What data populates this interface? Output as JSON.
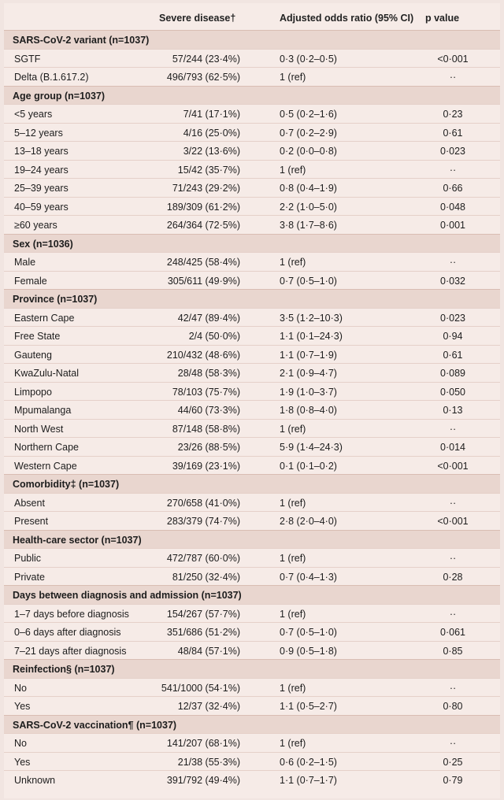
{
  "columns": {
    "severe": "Severe disease†",
    "or": "Adjusted odds ratio (95% CI)",
    "p": "p value"
  },
  "sections": [
    {
      "title": "SARS-CoV-2 variant (n=1037)",
      "rows": [
        {
          "label": "SGTF",
          "severe": "57/244 (23·4%)",
          "or": "0·3 (0·2–0·5)",
          "p": "<0·001"
        },
        {
          "label": "Delta (B.1.617.2)",
          "severe": "496/793 (62·5%)",
          "or": "1 (ref)",
          "p": "··"
        }
      ]
    },
    {
      "title": "Age group (n=1037)",
      "rows": [
        {
          "label": "<5 years",
          "severe": "7/41 (17·1%)",
          "or": "0·5 (0·2–1·6)",
          "p": "0·23"
        },
        {
          "label": "5–12 years",
          "severe": "4/16 (25·0%)",
          "or": "0·7 (0·2–2·9)",
          "p": "0·61"
        },
        {
          "label": "13–18 years",
          "severe": "3/22 (13·6%)",
          "or": "0·2 (0·0–0·8)",
          "p": "0·023"
        },
        {
          "label": "19–24 years",
          "severe": "15/42 (35·7%)",
          "or": "1 (ref)",
          "p": "··"
        },
        {
          "label": "25–39 years",
          "severe": "71/243 (29·2%)",
          "or": "0·8 (0·4–1·9)",
          "p": "0·66"
        },
        {
          "label": "40–59 years",
          "severe": "189/309 (61·2%)",
          "or": "2·2 (1·0–5·0)",
          "p": "0·048"
        },
        {
          "label": "≥60 years",
          "severe": "264/364 (72·5%)",
          "or": "3·8 (1·7–8·6)",
          "p": "0·001"
        }
      ]
    },
    {
      "title": "Sex (n=1036)",
      "rows": [
        {
          "label": "Male",
          "severe": "248/425 (58·4%)",
          "or": "1 (ref)",
          "p": "··"
        },
        {
          "label": "Female",
          "severe": "305/611 (49·9%)",
          "or": "0·7 (0·5–1·0)",
          "p": "0·032"
        }
      ]
    },
    {
      "title": "Province (n=1037)",
      "rows": [
        {
          "label": "Eastern Cape",
          "severe": "42/47 (89·4%)",
          "or": "3·5 (1·2–10·3)",
          "p": "0·023"
        },
        {
          "label": "Free State",
          "severe": "2/4 (50·0%)",
          "or": "1·1 (0·1–24·3)",
          "p": "0·94"
        },
        {
          "label": "Gauteng",
          "severe": "210/432 (48·6%)",
          "or": "1·1 (0·7–1·9)",
          "p": "0·61"
        },
        {
          "label": "KwaZulu-Natal",
          "severe": "28/48 (58·3%)",
          "or": "2·1 (0·9–4·7)",
          "p": "0·089"
        },
        {
          "label": "Limpopo",
          "severe": "78/103 (75·7%)",
          "or": "1·9 (1·0–3·7)",
          "p": "0·050"
        },
        {
          "label": "Mpumalanga",
          "severe": "44/60 (73·3%)",
          "or": "1·8 (0·8–4·0)",
          "p": "0·13"
        },
        {
          "label": "North West",
          "severe": "87/148 (58·8%)",
          "or": "1 (ref)",
          "p": "··"
        },
        {
          "label": "Northern Cape",
          "severe": "23/26 (88·5%)",
          "or": "5·9 (1·4–24·3)",
          "p": "0·014"
        },
        {
          "label": "Western Cape",
          "severe": "39/169 (23·1%)",
          "or": "0·1 (0·1–0·2)",
          "p": "<0·001"
        }
      ]
    },
    {
      "title": "Comorbidity‡ (n=1037)",
      "rows": [
        {
          "label": "Absent",
          "severe": "270/658 (41·0%)",
          "or": "1 (ref)",
          "p": "··"
        },
        {
          "label": "Present",
          "severe": "283/379 (74·7%)",
          "or": "2·8 (2·0–4·0)",
          "p": "<0·001"
        }
      ]
    },
    {
      "title": "Health-care sector (n=1037)",
      "rows": [
        {
          "label": "Public",
          "severe": "472/787 (60·0%)",
          "or": "1 (ref)",
          "p": "··"
        },
        {
          "label": "Private",
          "severe": "81/250 (32·4%)",
          "or": "0·7 (0·4–1·3)",
          "p": "0·28"
        }
      ]
    },
    {
      "title": "Days between diagnosis and admission (n=1037)",
      "rows": [
        {
          "label": "1–7 days before diagnosis",
          "severe": "154/267 (57·7%)",
          "or": "1 (ref)",
          "p": "··"
        },
        {
          "label": "0–6 days after diagnosis",
          "severe": "351/686 (51·2%)",
          "or": "0·7 (0·5–1·0)",
          "p": "0·061"
        },
        {
          "label": "7–21 days after diagnosis",
          "severe": "48/84 (57·1%)",
          "or": "0·9 (0·5–1·8)",
          "p": "0·85"
        }
      ]
    },
    {
      "title": "Reinfection§ (n=1037)",
      "rows": [
        {
          "label": "No",
          "severe": "541/1000 (54·1%)",
          "or": "1 (ref)",
          "p": "··"
        },
        {
          "label": "Yes",
          "severe": "12/37 (32·4%)",
          "or": "1·1 (0·5–2·7)",
          "p": "0·80"
        }
      ]
    },
    {
      "title": "SARS-CoV-2 vaccination¶ (n=1037)",
      "rows": [
        {
          "label": "No",
          "severe": "141/207 (68·1%)",
          "or": "1 (ref)",
          "p": "··"
        },
        {
          "label": "Yes",
          "severe": "21/38 (55·3%)",
          "or": "0·6 (0·2–1·5)",
          "p": "0·25"
        },
        {
          "label": "Unknown",
          "severe": "391/792 (49·4%)",
          "or": "1·1 (0·7–1·7)",
          "p": "0·79"
        }
      ]
    }
  ]
}
